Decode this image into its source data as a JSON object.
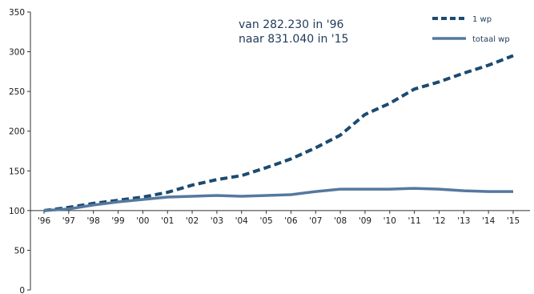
{
  "chart_data": {
    "type": "line",
    "categories": [
      "'96",
      "'97",
      "'98",
      "'99",
      "'00",
      "'01",
      "'02",
      "'03",
      "'04",
      "'05",
      "'06",
      "'07",
      "'08",
      "'09",
      "'10",
      "'11",
      "'12",
      "'13",
      "'14",
      "'15"
    ],
    "series": [
      {
        "name": "1 wp",
        "values": [
          100,
          104,
          109,
          113,
          117,
          123,
          132,
          139,
          144,
          154,
          165,
          179,
          195,
          221,
          235,
          253,
          262,
          273,
          283,
          295
        ],
        "color": "#1c4a70",
        "style": "dashed"
      },
      {
        "name": "totaal wp",
        "values": [
          100,
          102,
          107,
          111,
          114,
          117,
          118,
          119,
          118,
          119,
          120,
          124,
          127,
          127,
          127,
          128,
          127,
          125,
          124,
          124
        ],
        "color": "#55799f",
        "style": "solid"
      }
    ],
    "yticks": [
      0,
      50,
      100,
      150,
      200,
      250,
      300,
      350
    ],
    "ylim": [
      0,
      350
    ],
    "title": "",
    "xlabel": "",
    "ylabel": "",
    "annotation": [
      "van 282.230 in '96",
      "naar 831.040 in '15"
    ],
    "legend_position": "top-right",
    "grid": false
  }
}
